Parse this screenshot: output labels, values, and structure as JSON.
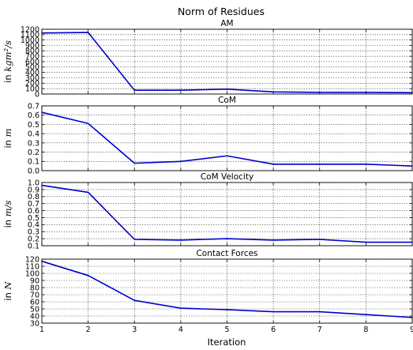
{
  "figure": {
    "title": "Norm of Residues",
    "xlabel": "Iteration"
  },
  "chart_data": [
    {
      "type": "line",
      "title": "AM",
      "ylabel": {
        "prefix": "in ",
        "unit": "kgm²/s"
      },
      "x": [
        1,
        2,
        3,
        4,
        5,
        6,
        7,
        8,
        9
      ],
      "series": [
        {
          "color": "#0000cc",
          "values": [
            1130,
            1140,
            70,
            70,
            90,
            40,
            30,
            30,
            25
          ]
        }
      ],
      "xlim": [
        1,
        9
      ],
      "ylim": [
        0,
        1200
      ],
      "xticks": [
        1,
        2,
        3,
        4,
        5,
        6,
        7,
        8,
        9
      ],
      "yticks": [
        0,
        100,
        200,
        300,
        400,
        500,
        600,
        700,
        800,
        900,
        1000,
        1100,
        1200
      ],
      "ytick_decimals": 0,
      "grid": true
    },
    {
      "type": "line",
      "title": "CoM",
      "ylabel": {
        "prefix": "in ",
        "unit": "m"
      },
      "x": [
        1,
        2,
        3,
        4,
        5,
        6,
        7,
        8,
        9
      ],
      "series": [
        {
          "color": "#0000cc",
          "values": [
            0.63,
            0.51,
            0.08,
            0.1,
            0.16,
            0.07,
            0.07,
            0.07,
            0.05
          ]
        }
      ],
      "xlim": [
        1,
        9
      ],
      "ylim": [
        0,
        0.7
      ],
      "xticks": [
        1,
        2,
        3,
        4,
        5,
        6,
        7,
        8,
        9
      ],
      "yticks": [
        0,
        0.1,
        0.2,
        0.3,
        0.4,
        0.5,
        0.6,
        0.7
      ],
      "ytick_decimals": 1,
      "grid": true
    },
    {
      "type": "line",
      "title": "CoM Velocity",
      "ylabel": {
        "prefix": "in ",
        "unit": "m/s"
      },
      "x": [
        1,
        2,
        3,
        4,
        5,
        6,
        7,
        8,
        9
      ],
      "series": [
        {
          "color": "#0000cc",
          "values": [
            0.96,
            0.86,
            0.19,
            0.18,
            0.2,
            0.18,
            0.19,
            0.15,
            0.15
          ]
        }
      ],
      "xlim": [
        1,
        9
      ],
      "ylim": [
        0.1,
        1.0
      ],
      "xticks": [
        1,
        2,
        3,
        4,
        5,
        6,
        7,
        8,
        9
      ],
      "yticks": [
        0.1,
        0.2,
        0.3,
        0.4,
        0.5,
        0.6,
        0.7,
        0.8,
        0.9,
        1.0
      ],
      "ytick_decimals": 1,
      "grid": true
    },
    {
      "type": "line",
      "title": "Contact Forces",
      "ylabel": {
        "prefix": "in ",
        "unit": "N"
      },
      "x": [
        1,
        2,
        3,
        4,
        5,
        6,
        7,
        8,
        9
      ],
      "series": [
        {
          "color": "#0000cc",
          "values": [
            117,
            97,
            62,
            51,
            49,
            46,
            46,
            42,
            38
          ]
        }
      ],
      "xlim": [
        1,
        9
      ],
      "ylim": [
        30,
        120
      ],
      "xticks": [
        1,
        2,
        3,
        4,
        5,
        6,
        7,
        8,
        9
      ],
      "yticks": [
        30,
        40,
        50,
        60,
        70,
        80,
        90,
        100,
        110,
        120
      ],
      "ytick_decimals": 0,
      "grid": true
    }
  ]
}
